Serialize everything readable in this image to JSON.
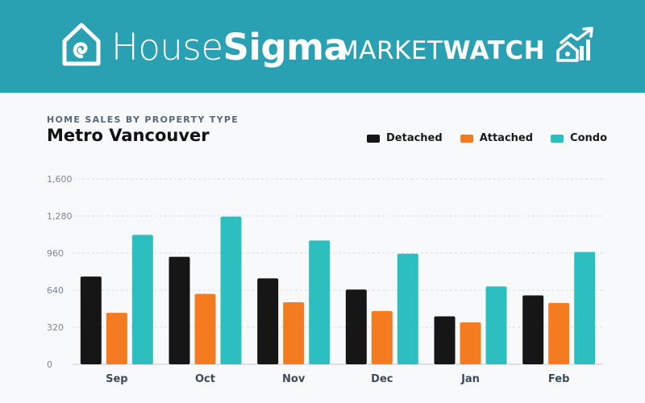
{
  "header": {
    "brand_light": "House",
    "brand_bold": "Sigma",
    "market_light": "MARKET",
    "market_bold": "WATCH",
    "logo_icon": "house-swirl-icon",
    "trend_icon": "house-rising-chart-icon",
    "bg_color": "#2aa1b3"
  },
  "chart_data": {
    "type": "bar",
    "subtitle": "HOME SALES BY PROPERTY TYPE",
    "title": "Metro Vancouver",
    "categories": [
      "Sep",
      "Oct",
      "Nov",
      "Dec",
      "Jan",
      "Feb"
    ],
    "series": [
      {
        "name": "Detached",
        "color": "#161616",
        "values": [
          757,
          928,
          742,
          645,
          414,
          595
        ]
      },
      {
        "name": "Attached",
        "color": "#f47b20",
        "values": [
          444,
          608,
          536,
          460,
          362,
          530
        ]
      },
      {
        "name": "Condo",
        "color": "#2dbfbf",
        "values": [
          1117,
          1275,
          1069,
          955,
          672,
          970
        ]
      }
    ],
    "yticks": [
      0,
      320,
      640,
      960,
      1280,
      1600
    ],
    "ytick_labels": [
      "0",
      "320",
      "640",
      "960",
      "1,280",
      "1,600"
    ],
    "ylim": [
      0,
      1600
    ],
    "grid": true,
    "legend_position": "top-right"
  }
}
